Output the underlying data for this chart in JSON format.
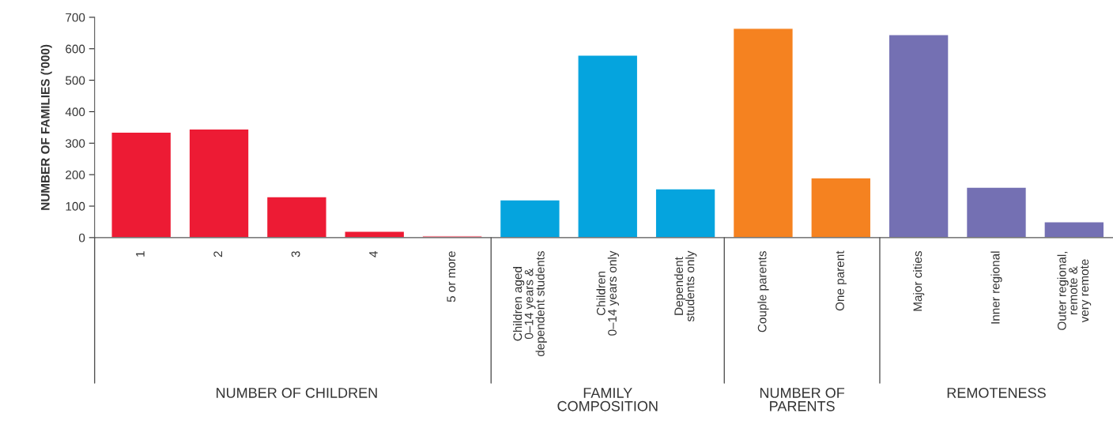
{
  "chart_data": {
    "type": "bar",
    "ylabel": "NUMBER OF FAMILIES ('000)",
    "categories": [
      "1",
      "2",
      "3",
      "4",
      "5 or more",
      "Children aged\n0–14 years &\ndependent students",
      "Children\n0–14 years only",
      "Dependent\nstudents only",
      "Couple parents",
      "One parent",
      "Major cities",
      "Inner regional",
      "Outer regional,\nremote &\nvery remote"
    ],
    "series": [
      {
        "color": "#ed1b34",
        "values": [
          335,
          345,
          130,
          20,
          5,
          null,
          null,
          null,
          null,
          null,
          null,
          null,
          null
        ]
      },
      {
        "color": "#05a4de",
        "values": [
          null,
          null,
          null,
          null,
          null,
          120,
          580,
          155,
          null,
          null,
          null,
          null,
          null
        ]
      },
      {
        "color": "#f58220",
        "values": [
          null,
          null,
          null,
          null,
          null,
          null,
          null,
          null,
          665,
          190,
          null,
          null,
          null
        ]
      },
      {
        "color": "#7470b3",
        "values": [
          null,
          null,
          null,
          null,
          null,
          null,
          null,
          null,
          null,
          null,
          645,
          160,
          50
        ]
      }
    ],
    "annotations": [
      "NUMBER OF CHILDREN",
      "FAMILY\nCOMPOSITION",
      "NUMBER OF\nPARENTS",
      "REMOTENESS"
    ],
    "ylim": [
      0,
      700
    ],
    "yticks": [
      0,
      100,
      200,
      300,
      400,
      500,
      600,
      700
    ],
    "grid": false,
    "legend": false
  }
}
